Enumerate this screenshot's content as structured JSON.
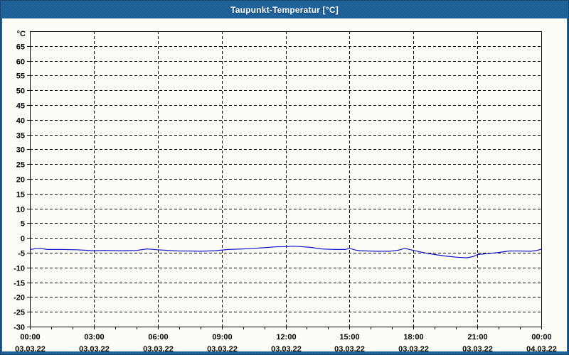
{
  "window": {
    "title": "Taupunkt-Temperatur [°C]",
    "titlebar_color": "#2166a0",
    "border_color": "#17476d",
    "content_background": "#fdfdf8"
  },
  "chart_data": {
    "type": "line",
    "title": "Taupunkt-Temperatur [°C]",
    "ylabel": "°C",
    "ylim": [
      -30,
      70
    ],
    "xlim_hours": [
      0,
      24
    ],
    "grid": "dashed",
    "legend": "none",
    "yticks": [
      65,
      60,
      55,
      50,
      45,
      40,
      35,
      30,
      25,
      20,
      15,
      10,
      5,
      0,
      -5,
      -10,
      -15,
      -20,
      -25,
      -30
    ],
    "xtick_interval_hours": 3,
    "minor_xtick_interval_hours": 1,
    "xticks": [
      {
        "time": "00:00",
        "date": "03.03.22"
      },
      {
        "time": "03:00",
        "date": "03.03.22"
      },
      {
        "time": "06:00",
        "date": "03.03.22"
      },
      {
        "time": "09:00",
        "date": "03.03.22"
      },
      {
        "time": "12:00",
        "date": "03.03.22"
      },
      {
        "time": "15:00",
        "date": "03.03.22"
      },
      {
        "time": "18:00",
        "date": "03.03.22"
      },
      {
        "time": "21:00",
        "date": "03.03.22"
      },
      {
        "time": "00:00",
        "date": "04.03.22"
      }
    ],
    "series": [
      {
        "name": "Taupunkt-Temperatur",
        "color": "#1212cd",
        "points": [
          [
            0.0,
            -3.9
          ],
          [
            0.3,
            -3.6
          ],
          [
            0.5,
            -3.5
          ],
          [
            0.8,
            -3.9
          ],
          [
            1.5,
            -3.9
          ],
          [
            2.2,
            -4.0
          ],
          [
            3.0,
            -4.3
          ],
          [
            3.5,
            -4.2
          ],
          [
            4.3,
            -4.3
          ],
          [
            5.0,
            -4.2
          ],
          [
            5.5,
            -3.7
          ],
          [
            6.0,
            -4.0
          ],
          [
            6.5,
            -4.2
          ],
          [
            7.0,
            -4.4
          ],
          [
            7.5,
            -4.4
          ],
          [
            8.0,
            -4.5
          ],
          [
            8.7,
            -4.3
          ],
          [
            9.3,
            -3.9
          ],
          [
            10.0,
            -3.7
          ],
          [
            10.3,
            -3.6
          ],
          [
            11.0,
            -3.3
          ],
          [
            11.5,
            -3.0
          ],
          [
            12.0,
            -2.9
          ],
          [
            12.4,
            -2.8
          ],
          [
            12.7,
            -2.9
          ],
          [
            13.2,
            -3.2
          ],
          [
            13.7,
            -3.7
          ],
          [
            14.3,
            -3.9
          ],
          [
            14.8,
            -3.9
          ],
          [
            15.0,
            -3.5
          ],
          [
            15.3,
            -4.1
          ],
          [
            15.5,
            -4.3
          ],
          [
            16.2,
            -4.5
          ],
          [
            16.9,
            -4.5
          ],
          [
            17.3,
            -4.1
          ],
          [
            17.6,
            -3.5
          ],
          [
            18.0,
            -4.2
          ],
          [
            18.5,
            -5.0
          ],
          [
            19.0,
            -5.6
          ],
          [
            19.5,
            -6.1
          ],
          [
            20.0,
            -6.5
          ],
          [
            20.5,
            -6.7
          ],
          [
            20.8,
            -6.3
          ],
          [
            21.0,
            -5.6
          ],
          [
            21.5,
            -5.3
          ],
          [
            22.0,
            -4.9
          ],
          [
            22.5,
            -4.4
          ],
          [
            23.0,
            -4.4
          ],
          [
            23.5,
            -4.5
          ],
          [
            23.8,
            -4.2
          ],
          [
            24.0,
            -3.8
          ]
        ]
      }
    ]
  }
}
